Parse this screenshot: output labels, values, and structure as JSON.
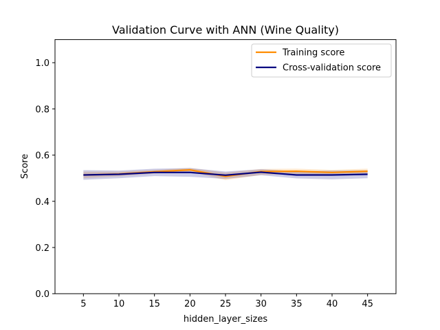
{
  "chart_data": {
    "type": "line",
    "title": "Validation Curve with ANN (Wine Quality)",
    "xlabel": "hidden_layer_sizes",
    "ylabel": "Score",
    "x": [
      5,
      10,
      15,
      20,
      25,
      30,
      35,
      40,
      45
    ],
    "xlim": [
      1.0,
      49.0
    ],
    "ylim": [
      0.0,
      1.1
    ],
    "xticks": [
      "5",
      "10",
      "15",
      "20",
      "25",
      "30",
      "35",
      "40",
      "45"
    ],
    "yticks": [
      "0.0",
      "0.2",
      "0.4",
      "0.6",
      "0.8",
      "1.0"
    ],
    "grid": false,
    "legend_position": "top-right",
    "series": [
      {
        "name": "Training score",
        "color": "#ff8c00",
        "band_color": "#ff8c00",
        "values": [
          0.514,
          0.518,
          0.528,
          0.536,
          0.508,
          0.529,
          0.53,
          0.525,
          0.53
        ],
        "band_low": [
          0.5,
          0.508,
          0.52,
          0.528,
          0.492,
          0.514,
          0.518,
          0.514,
          0.518
        ],
        "band_high": [
          0.528,
          0.528,
          0.536,
          0.544,
          0.524,
          0.54,
          0.541,
          0.536,
          0.541
        ]
      },
      {
        "name": "Cross-validation score",
        "color": "#000080",
        "band_color": "#000080",
        "values": [
          0.514,
          0.517,
          0.525,
          0.525,
          0.513,
          0.526,
          0.514,
          0.514,
          0.517
        ],
        "band_low": [
          0.493,
          0.5,
          0.509,
          0.506,
          0.497,
          0.513,
          0.499,
          0.495,
          0.5
        ],
        "band_high": [
          0.535,
          0.533,
          0.541,
          0.544,
          0.529,
          0.539,
          0.53,
          0.533,
          0.534
        ]
      }
    ]
  }
}
